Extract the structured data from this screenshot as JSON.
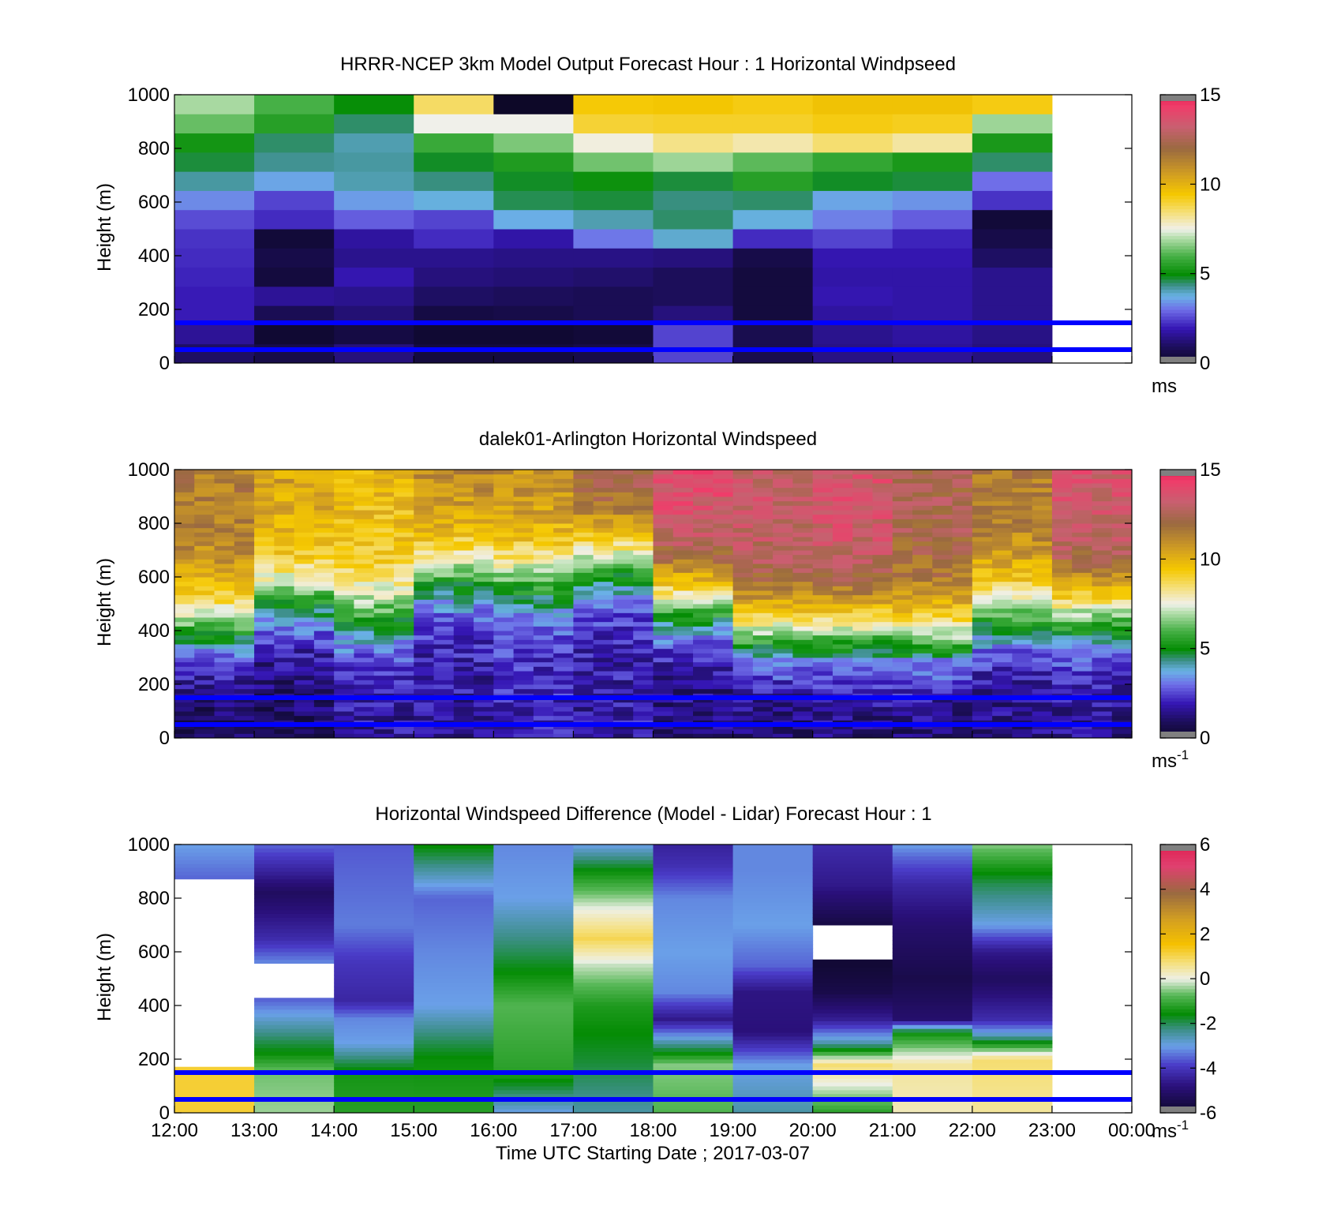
{
  "chart_data": [
    {
      "type": "heatmap",
      "title": "HRRR-NCEP 3km Model Output   Forecast Hour : 1 Horizontal Windpseed",
      "ylabel": "Height (m)",
      "ylim": [
        0,
        1000
      ],
      "yticks": [
        "0",
        "200",
        "400",
        "600",
        "800",
        "1000"
      ],
      "x_range_hours": [
        12,
        24
      ],
      "z_range": [
        0,
        15
      ],
      "colorbar_ticks": [
        "0",
        "5",
        "10",
        "15"
      ],
      "colorbar_unit": "ms",
      "colorbar_unit_sup": "",
      "colormap": "speed",
      "reference_lines_height_m": [
        150,
        50
      ],
      "reference_line_color": "#0000ff",
      "columns": [
        {
          "hour": 12,
          "values": [
            1,
            1.6,
            2,
            2,
            2.1,
            2.2,
            2.3,
            2.6,
            3.3,
            4.2,
            4.7,
            5.2,
            6.3,
            6.9
          ]
        },
        {
          "hour": 13,
          "values": [
            0.6,
            0.2,
            0.8,
            1.6,
            0.4,
            0.6,
            0.3,
            2.2,
            2.5,
            3.6,
            4.3,
            4.5,
            5.5,
            6
          ]
        },
        {
          "hour": 14,
          "values": [
            1.3,
            0.5,
            1.2,
            1.5,
            1.9,
            1.5,
            1.7,
            2.8,
            3.5,
            4.1,
            4.2,
            4.1,
            4.5,
            5
          ]
        },
        {
          "hour": 15,
          "values": [
            0.4,
            0.2,
            0.5,
            1,
            1.3,
            1.5,
            2.2,
            2.5,
            3.8,
            4.4,
            4.8,
            5.8,
            7.5,
            8.6
          ]
        },
        {
          "hour": 16,
          "values": [
            0.4,
            0.2,
            0.6,
            0.9,
            1.2,
            1.4,
            1.8,
            3.7,
            4.6,
            4.8,
            5.4,
            6.5,
            7.5,
            0
          ]
        },
        {
          "hour": 17,
          "values": [
            0.6,
            0.3,
            0.8,
            0.8,
            1.1,
            1.4,
            3.1,
            4.1,
            4.7,
            5.1,
            6.4,
            7.6,
            9,
            9.4
          ]
        },
        {
          "hour": 18,
          "values": [
            2.5,
            2.5,
            1.3,
            0.9,
            0.9,
            1.3,
            3.9,
            4.5,
            4.4,
            4.7,
            6.8,
            8.3,
            9.1,
            9.5
          ]
        },
        {
          "hour": 19,
          "values": [
            0.7,
            0.7,
            0.4,
            0.4,
            0.4,
            0.6,
            2.2,
            3.8,
            4.5,
            5.5,
            6.2,
            8,
            9.1,
            9.3
          ]
        },
        {
          "hour": 20,
          "values": [
            1.4,
            1.5,
            1.7,
            1.9,
            1.8,
            1.9,
            2.5,
            3.2,
            3.6,
            4.8,
            5.7,
            8.5,
            9.3,
            9.6
          ]
        },
        {
          "hour": 21,
          "values": [
            1.6,
            1.7,
            1.8,
            1.8,
            1.8,
            1.9,
            2.1,
            2.8,
            3.4,
            4.7,
            5.3,
            8.1,
            9.2,
            9.6
          ]
        },
        {
          "hour": 22,
          "values": [
            1.3,
            1.4,
            1.5,
            1.5,
            1.5,
            1.0,
            0.6,
            0.3,
            2.3,
            3,
            4.5,
            5.3,
            6.8,
            9.3
          ]
        }
      ]
    },
    {
      "type": "heatmap",
      "title": "dalek01-Arlington  Horizontal Windspeed",
      "ylabel": "Height (m)",
      "ylim": [
        0,
        1000
      ],
      "yticks": [
        "0",
        "200",
        "400",
        "600",
        "800",
        "1000"
      ],
      "x_range_hours": [
        12,
        24
      ],
      "z_range": [
        0,
        15
      ],
      "colorbar_ticks": [
        "0",
        "5",
        "10",
        "15"
      ],
      "colorbar_unit": "ms",
      "colorbar_unit_sup": "-1",
      "colormap": "speed",
      "reference_lines_height_m": [
        150,
        50
      ],
      "reference_line_color": "#0000ff",
      "profile_interval_minutes": 15,
      "profiles_summary": [
        {
          "hour": 12,
          "wind_min": 0.8,
          "wind_max": 11.5,
          "transition_height_m": 420
        },
        {
          "hour": 13,
          "wind_min": 1.0,
          "wind_max": 10.5,
          "transition_height_m": 520
        },
        {
          "hour": 14,
          "wind_min": 1.6,
          "wind_max": 9.8,
          "transition_height_m": 460
        },
        {
          "hour": 15,
          "wind_min": 1.7,
          "wind_max": 11.2,
          "transition_height_m": 620
        },
        {
          "hour": 16,
          "wind_min": 2.0,
          "wind_max": 11.0,
          "transition_height_m": 600
        },
        {
          "hour": 17,
          "wind_min": 1.8,
          "wind_max": 12.8,
          "transition_height_m": 680
        },
        {
          "hour": 18,
          "wind_min": 1.2,
          "wind_max": 13.8,
          "transition_height_m": 520
        },
        {
          "hour": 19,
          "wind_min": 1.0,
          "wind_max": 13.2,
          "transition_height_m": 400
        },
        {
          "hour": 20,
          "wind_min": 1.2,
          "wind_max": 13.5,
          "transition_height_m": 410
        },
        {
          "hour": 21,
          "wind_min": 1.0,
          "wind_max": 12.5,
          "transition_height_m": 380
        },
        {
          "hour": 22,
          "wind_min": 1.3,
          "wind_max": 11.5,
          "transition_height_m": 470
        },
        {
          "hour": 23,
          "wind_min": 1.5,
          "wind_max": 13.5,
          "transition_height_m": 480
        }
      ]
    },
    {
      "type": "heatmap",
      "title": "Horizontal Windspeed Difference (Model - Lidar) Forecast Hour : 1",
      "ylabel": "Height (m)",
      "xlabel": "Time UTC  Starting Date ; 2017-03-07",
      "ylim": [
        0,
        1000
      ],
      "yticks": [
        "0",
        "200",
        "400",
        "600",
        "800",
        "1000"
      ],
      "xticks": [
        "12:00",
        "13:00",
        "14:00",
        "15:00",
        "16:00",
        "17:00",
        "18:00",
        "19:00",
        "20:00",
        "21:00",
        "22:00",
        "23:00",
        "00:00"
      ],
      "x_range_hours": [
        12,
        24
      ],
      "z_range": [
        -6,
        6
      ],
      "colorbar_ticks": [
        "-6",
        "-4",
        "-2",
        "0",
        "2",
        "4",
        "6"
      ],
      "colorbar_unit": "ms",
      "colorbar_unit_sup": "-1",
      "colormap": "diff",
      "reference_lines_height_m": [
        150,
        50
      ],
      "reference_line_color": "#0000ff",
      "column_profiles": [
        {
          "hour": 12,
          "points": [
            [
              0,
              1.2
            ],
            [
              170,
              1.2
            ],
            [
              180,
              null
            ],
            [
              860,
              null
            ],
            [
              870,
              -3.5
            ],
            [
              1000,
              -3
            ]
          ]
        },
        {
          "hour": 13,
          "points": [
            [
              0,
              -0.4
            ],
            [
              150,
              -0.6
            ],
            [
              220,
              -1.5
            ],
            [
              420,
              -3.5
            ],
            [
              480,
              null
            ],
            [
              560,
              -3.2
            ],
            [
              650,
              -4.2
            ],
            [
              820,
              -5.2
            ],
            [
              900,
              -4.4
            ],
            [
              1000,
              -3.5
            ]
          ]
        },
        {
          "hour": 14,
          "points": [
            [
              0,
              -1.2
            ],
            [
              150,
              -1.4
            ],
            [
              260,
              -3
            ],
            [
              350,
              -3.2
            ],
            [
              420,
              -4.3
            ],
            [
              560,
              -4
            ],
            [
              700,
              -3.3
            ],
            [
              900,
              -3.5
            ],
            [
              1000,
              -3.6
            ]
          ]
        },
        {
          "hour": 15,
          "points": [
            [
              0,
              -1.2
            ],
            [
              200,
              -1.5
            ],
            [
              400,
              -3
            ],
            [
              600,
              -3.2
            ],
            [
              800,
              -3.5
            ],
            [
              1000,
              -1.5
            ]
          ]
        },
        {
          "hour": 16,
          "points": [
            [
              0,
              -3
            ],
            [
              150,
              -1.2
            ],
            [
              400,
              -0.8
            ],
            [
              600,
              -2
            ],
            [
              800,
              -3
            ],
            [
              1000,
              -3.2
            ]
          ]
        },
        {
          "hour": 17,
          "points": [
            [
              0,
              -2.5
            ],
            [
              200,
              -1.8
            ],
            [
              400,
              -1.3
            ],
            [
              550,
              -0.2
            ],
            [
              650,
              1
            ],
            [
              760,
              0
            ],
            [
              900,
              -1.5
            ],
            [
              1000,
              -3
            ]
          ]
        },
        {
          "hour": 18,
          "points": [
            [
              0,
              -0.8
            ],
            [
              180,
              -0.5
            ],
            [
              250,
              -2.2
            ],
            [
              350,
              -4.6
            ],
            [
              450,
              -3.2
            ],
            [
              600,
              -3
            ],
            [
              800,
              -3.2
            ],
            [
              920,
              -4.1
            ],
            [
              1000,
              -4.4
            ]
          ]
        },
        {
          "hour": 19,
          "points": [
            [
              0,
              -2.5
            ],
            [
              180,
              -3
            ],
            [
              300,
              -4.8
            ],
            [
              450,
              -4.7
            ],
            [
              550,
              -3.5
            ],
            [
              700,
              -3
            ],
            [
              900,
              -3.2
            ],
            [
              1000,
              -3.2
            ]
          ]
        },
        {
          "hour": 20,
          "points": [
            [
              0,
              -1.2
            ],
            [
              180,
              0.8
            ],
            [
              260,
              -2.5
            ],
            [
              350,
              -4.5
            ],
            [
              450,
              -5.5
            ],
            [
              550,
              -5.8
            ],
            [
              650,
              null
            ],
            [
              700,
              -5.6
            ],
            [
              850,
              -4.6
            ],
            [
              1000,
              -4.2
            ]
          ]
        },
        {
          "hour": 21,
          "points": [
            [
              0,
              0.3
            ],
            [
              180,
              0.5
            ],
            [
              300,
              -1.5
            ],
            [
              350,
              -5
            ],
            [
              500,
              -5.5
            ],
            [
              700,
              -5
            ],
            [
              850,
              -4.3
            ],
            [
              950,
              -3.5
            ],
            [
              1000,
              -3
            ]
          ]
        },
        {
          "hour": 22,
          "points": [
            [
              0,
              0.5
            ],
            [
              200,
              0.8
            ],
            [
              300,
              -3
            ],
            [
              350,
              -4.2
            ],
            [
              500,
              -5.2
            ],
            [
              600,
              -4.6
            ],
            [
              700,
              -3
            ],
            [
              850,
              -2
            ],
            [
              1000,
              -0.5
            ]
          ]
        }
      ]
    }
  ]
}
